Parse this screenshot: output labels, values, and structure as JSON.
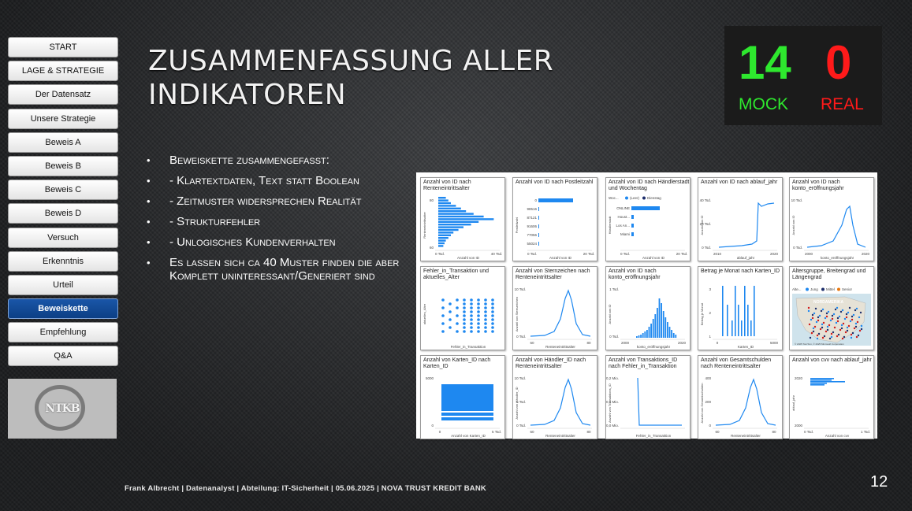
{
  "nav": {
    "items": [
      {
        "label": "START",
        "active": false
      },
      {
        "label": "LAGE & STRATEGIE",
        "active": false
      },
      {
        "label": "Der Datensatz",
        "active": false
      },
      {
        "label": "Unsere Strategie",
        "active": false
      },
      {
        "label": "Beweis A",
        "active": false
      },
      {
        "label": "Beweis B",
        "active": false
      },
      {
        "label": "Beweis C",
        "active": false
      },
      {
        "label": "Beweis D",
        "active": false
      },
      {
        "label": "Versuch",
        "active": false
      },
      {
        "label": "Erkenntnis",
        "active": false
      },
      {
        "label": "Urteil",
        "active": false
      },
      {
        "label": "Beweiskette",
        "active": true
      },
      {
        "label": "Empfehlung",
        "active": false
      },
      {
        "label": "Q&A",
        "active": false
      }
    ]
  },
  "logo": {
    "text": "NTKB"
  },
  "title": {
    "line1": "ZUSAMMENFASSUNG ALLER",
    "line2": "INDIKATOREN"
  },
  "score": {
    "mock_value": "14",
    "mock_label": "MOCK",
    "mock_color": "#2ee82e",
    "real_value": "0",
    "real_label": "REAL",
    "real_color": "#ff1a1a"
  },
  "bullets": [
    "Beweiskette zusammengefasst:",
    "- Klartextdaten, Text statt Boolean",
    "- Zeitmuster widersprechen Realität",
    "- Strukturfehler",
    "- Unlogisches Kundenverhalten",
    "Es lassen sich ca 40 Muster finden die aber Komplett uninteressant/Generiert sind"
  ],
  "tiles": [
    {
      "title": "Anzahl von ID nach Renteneintrittsalter",
      "type": "hbars",
      "ylabel": "Renteneintrittsalter",
      "xlabel": "Anzahl von ID",
      "yticks": [
        "80",
        "60"
      ],
      "xticks": [
        "0 Tsd.",
        "40 Tsd."
      ]
    },
    {
      "title": "Anzahl von ID nach Postleitzahl",
      "type": "cat",
      "ylabel": "Postleitzahl",
      "xlabel": "Anzahl von ID",
      "cats": [
        "0",
        "98516",
        "87121",
        "91606",
        "77056",
        "55024"
      ],
      "xticks": [
        "0 Tsd.",
        "20 Tsd."
      ]
    },
    {
      "title": "Anzahl von ID nach Händlerstadt und Wochentag",
      "type": "legendbars",
      "legend_prefix": "Woc...",
      "legend": [
        "(Leer)",
        "Dienstag"
      ],
      "ylabel": "Händlerstadt",
      "xlabel": "Anzahl von ID",
      "cats": [
        "ONLINE",
        "Houst...",
        "Los An...",
        "Miami"
      ],
      "xticks": [
        "0 Tsd.",
        "20 Tsd."
      ]
    },
    {
      "title": "Anzahl von ID nach ablauf_jahr",
      "type": "line",
      "ylabel": "Anzahl von ID",
      "xlabel": "ablauf_jahr",
      "yticks": [
        "40 Tsd.",
        "20 Tsd.",
        "0 Tsd."
      ],
      "xticks": [
        "2010",
        "2020"
      ]
    },
    {
      "title": "Anzahl von ID nach konto_eröffnungsjahr",
      "type": "peak",
      "ylabel": "Anzahl von ID",
      "xlabel": "konto_eröffnungsjahr",
      "yticks": [
        "10 Tsd.",
        "0 Tsd."
      ],
      "xticks": [
        "2000",
        "2020"
      ]
    },
    {
      "title": "Fehler_in_Transaktion und aktuelles_Alter",
      "type": "scatter",
      "ylabel": "aktuelles_Alter",
      "xlabel": "Fehler_in_Transaktion",
      "yticks": [],
      "xticks": []
    },
    {
      "title": "Anzahl von Sternzeichen nach Renteneintrittsalter",
      "type": "bell",
      "ylabel": "Anzahl von Sternzeichen",
      "xlabel": "Renteneintrittsalter",
      "yticks": [
        "10 Tsd.",
        "0 Tsd."
      ],
      "xticks": [
        "60",
        "80"
      ]
    },
    {
      "title": "Anzahl von ID nach konto_eröffnungsjahr",
      "type": "hist",
      "ylabel": "Anzahl von ID",
      "xlabel": "konto_eröffnungsjahr",
      "yticks": [
        "1 Tsd.",
        "0 Tsd."
      ],
      "xticks": [
        "2000",
        "2020"
      ]
    },
    {
      "title": "Betrag je Monat nach Karten_ID",
      "type": "spikes",
      "ylabel": "Betrag je Monat",
      "xlabel": "Karten_ID",
      "yticks": [
        "3",
        "2",
        "1"
      ],
      "xticks": [
        "0",
        "5000"
      ]
    },
    {
      "title": "Altersgruppe, Breitengrad und Längengrad",
      "type": "map",
      "legend_prefix": "Alte...",
      "legend": [
        "Jung",
        "Mittel",
        "Senior"
      ],
      "map_label": "NORDAMERIKA",
      "map_credit": "© 2025 TomTom, © 2025 Microsoft Corporation"
    },
    {
      "title": "Anzahl von Karten_ID nach Karten_ID",
      "type": "blocks",
      "ylabel": "",
      "xlabel": "Anzahl von Karten_ID",
      "yticks": [
        "5000",
        "0"
      ],
      "xticks": [
        "0",
        "5 Tsd."
      ]
    },
    {
      "title": "Anzahl von Händler_ID nach Renteneintrittsalter",
      "type": "bell",
      "ylabel": "Anzahl von Händler_ID",
      "xlabel": "Renteneintrittsalter",
      "yticks": [
        "10 Tsd.",
        "5 Tsd.",
        "0 Tsd."
      ],
      "xticks": [
        "60",
        "80"
      ]
    },
    {
      "title": "Anzahl von Transaktions_ID nach Fehler_in_Transaktion",
      "type": "drop",
      "ylabel": "Anzahl von Transaktions_ID",
      "xlabel": "Fehler_in_Transaktion",
      "yticks": [
        "0,2 Mio.",
        "0,1 Mio.",
        "0,0 Mio."
      ],
      "xticks": []
    },
    {
      "title": "Anzahl von Gesamtschulden nach Renteneintrittsalter",
      "type": "bell",
      "ylabel": "Anzahl von Gesamtschulden",
      "xlabel": "Renteneintrittsalter",
      "yticks": [
        "400",
        "200",
        "0"
      ],
      "xticks": [
        "60",
        "80"
      ]
    },
    {
      "title": "Anzahl von cvv nach ablauf_jahr",
      "type": "cvv",
      "ylabel": "ablauf_jahr",
      "xlabel": "Anzahl von cvv",
      "yticks": [
        "2020",
        "2000"
      ],
      "xticks": [
        "0 Tsd.",
        "1 Tsd."
      ]
    }
  ],
  "chart_colors": {
    "bar": "#1e88f0",
    "accent_dark": "#1c2d6b",
    "orange": "#e8760c",
    "red": "#d11a1a"
  },
  "footer": "Frank Albrecht | Datenanalyst | Abteilung: IT-Sicherheit | 05.06.2025 | NOVA TRUST KREDIT BANK",
  "page_number": "12"
}
